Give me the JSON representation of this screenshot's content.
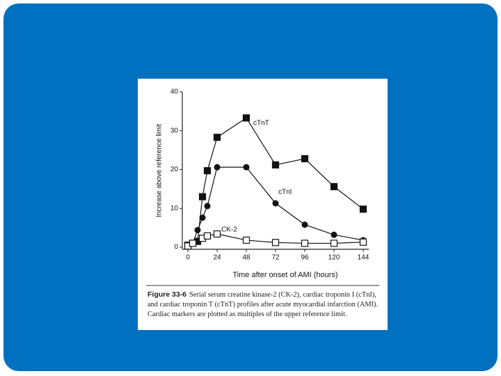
{
  "chart_data": {
    "type": "line",
    "x_label": "Time after onset of AMI (hours)",
    "y_label": "Increase above reference limit",
    "xlim": [
      0,
      144
    ],
    "xticks": [
      0,
      24,
      48,
      72,
      96,
      120,
      144
    ],
    "ylim": [
      0,
      40
    ],
    "yticks": [
      0,
      10,
      20,
      30,
      40
    ],
    "series": [
      {
        "name": "cTnT",
        "color": "#111111",
        "marker": "filled-square",
        "x": [
          0,
          4,
          8,
          12,
          16,
          24,
          48,
          72,
          96,
          120,
          144
        ],
        "values": [
          0.5,
          1,
          1.5,
          13,
          19.7,
          28.3,
          33.3,
          21.2,
          22.8,
          15.6,
          9.8
        ]
      },
      {
        "name": "cTnI",
        "color": "#111111",
        "marker": "filled-circle",
        "x": [
          0,
          4,
          8,
          12,
          16,
          24,
          48,
          72,
          96,
          120,
          144
        ],
        "values": [
          0.3,
          1,
          4.4,
          7.6,
          10.6,
          20.6,
          20.6,
          11.3,
          5.8,
          3.2,
          1.8
        ]
      },
      {
        "name": "CK-2",
        "color": "#111111",
        "marker": "open-square",
        "x": [
          0,
          4,
          12,
          16,
          24,
          48,
          72,
          96,
          120,
          144
        ],
        "values": [
          0.3,
          1,
          2.3,
          2.9,
          3.4,
          1.8,
          1.2,
          1,
          1,
          1.3
        ]
      }
    ],
    "caption": {
      "label": "Figure 33-6",
      "text": "Serial serum creatine kinase-2 (CK-2), cardiac troponin I (cTnI), and cardiac troponin T (cTnT) profiles after acute myocardial infarction (AMI). Cardiac markers are plotted as multiples of the upper reference limit."
    }
  }
}
